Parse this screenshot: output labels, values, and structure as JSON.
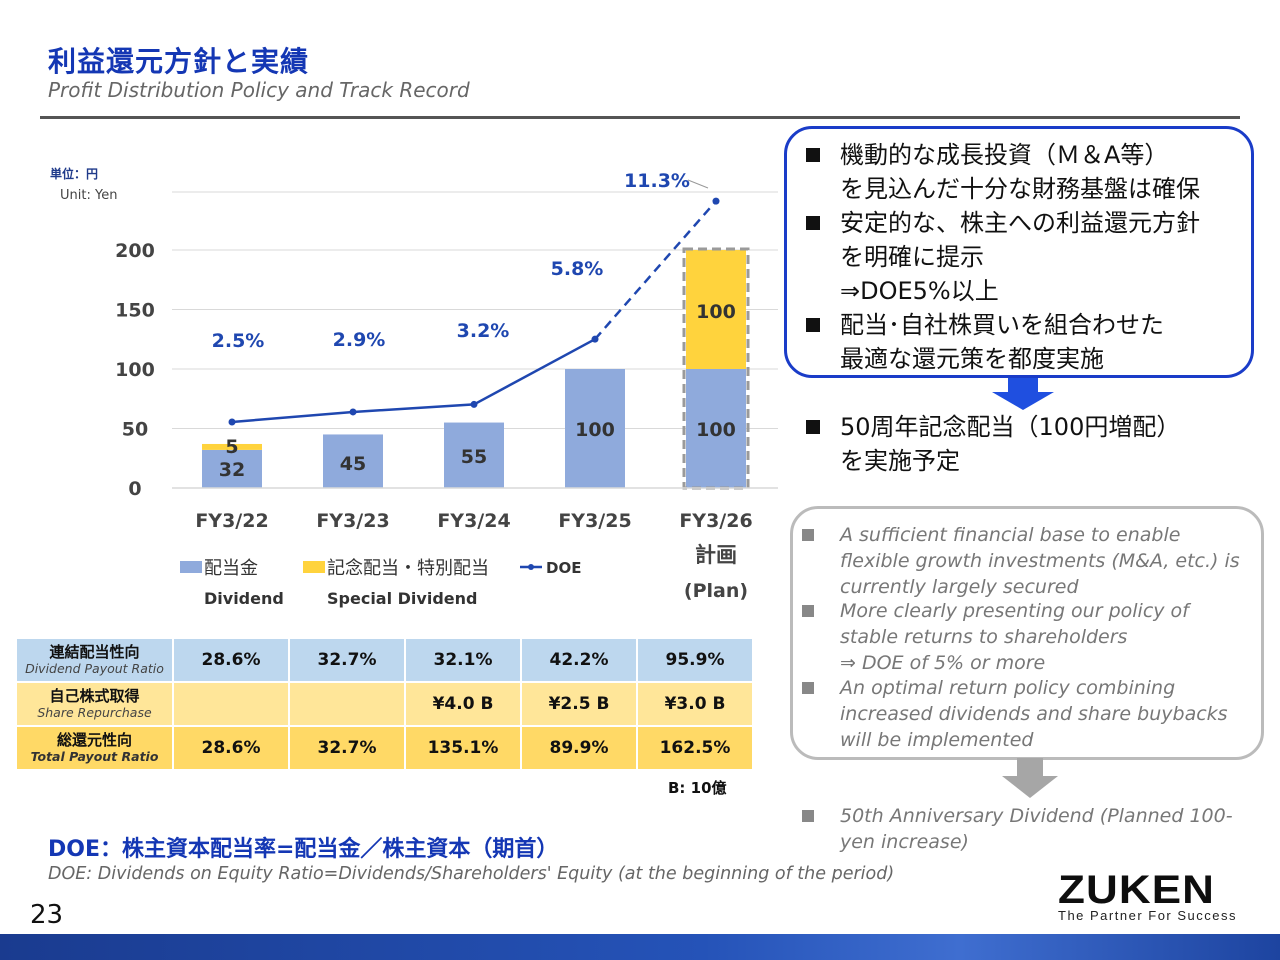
{
  "header": {
    "title_jp": "利益還元方針と実績",
    "title_en": "Profit Distribution Policy and Track Record"
  },
  "unit": {
    "jp": "単位：円",
    "en": "Unit: Yen"
  },
  "colors": {
    "dividend": "#8faadc",
    "special": "#ffd33d",
    "doe_line": "#1f47b0",
    "title_blue": "#1437b4"
  },
  "chart_data": {
    "type": "bar",
    "categories": [
      "FY3/22",
      "FY3/23",
      "FY3/24",
      "FY3/25",
      "FY3/26"
    ],
    "category_sublabels": [
      "",
      "",
      "",
      "",
      "計画"
    ],
    "category_sublabels2": [
      "",
      "",
      "",
      "",
      "(Plan)"
    ],
    "ylim": [
      0,
      200
    ],
    "yticks": [
      0,
      50,
      100,
      150,
      200
    ],
    "stacked": true,
    "series": [
      {
        "name": "配当金",
        "name_en": "Dividend",
        "values": [
          32,
          45,
          55,
          100,
          100
        ],
        "color": "#8faadc"
      },
      {
        "name": "記念配当・特別配当",
        "name_en": "Special Dividend",
        "values": [
          5,
          0,
          0,
          0,
          100
        ],
        "color": "#ffd33d"
      }
    ],
    "line_series": {
      "name": "DOE",
      "values": [
        2.5,
        2.9,
        3.2,
        5.8,
        11.3
      ],
      "labels": [
        "2.5%",
        "2.9%",
        "3.2%",
        "5.8%",
        "11.3%"
      ],
      "dashed_from_index": 3
    },
    "grid": true,
    "legend_position": "bottom"
  },
  "table": {
    "rows": [
      {
        "label_jp": "連結配当性向",
        "label_en": "Dividend Payout Ratio",
        "values": [
          "28.6%",
          "32.7%",
          "32.1%",
          "42.2%",
          "95.9%"
        ]
      },
      {
        "label_jp": "自己株式取得",
        "label_en": "Share Repurchase",
        "values": [
          "",
          "",
          "¥4.0 B",
          "¥2.5 B",
          "¥3.0 B"
        ]
      },
      {
        "label_jp": "総還元性向",
        "label_en": "Total Payout Ratio",
        "values": [
          "28.6%",
          "32.7%",
          "135.1%",
          "89.9%",
          "162.5%"
        ]
      }
    ],
    "note": "B: 10億"
  },
  "doe_definition": {
    "jp": "DOE：株主資本配当率=配当金／株主資本（期首）",
    "en": "DOE: Dividends on Equity Ratio=Dividends/Shareholders' Equity (at the beginning of the period)"
  },
  "policy_jp": [
    {
      "lines": [
        "機動的な成長投資（Ｍ＆A等）",
        "を見込んだ十分な財務基盤は確保"
      ]
    },
    {
      "lines": [
        "安定的な、株主への利益還元方針",
        "を明確に提示",
        "⇒DOE5%以上"
      ]
    },
    {
      "lines": [
        "配当･自社株買いを組合わせた",
        "最適な還元策を都度実施"
      ]
    }
  ],
  "anniversary_jp": {
    "lines": [
      "50周年記念配当（100円増配）",
      "を実施予定"
    ]
  },
  "policy_en": [
    {
      "lines": [
        "A sufficient financial base to enable",
        "flexible growth investments (M&A, etc.) is",
        "currently largely secured"
      ]
    },
    {
      "lines": [
        "More clearly presenting our policy of",
        "stable returns to shareholders",
        "⇒ DOE of 5% or more"
      ]
    },
    {
      "lines": [
        "An optimal return policy combining",
        "increased dividends and share buybacks",
        "will be implemented"
      ]
    }
  ],
  "anniversary_en": {
    "lines": [
      "50th Anniversary Dividend (Planned 100-",
      "yen increase)"
    ]
  },
  "footer": {
    "page_number": "23",
    "logo": "ZUKEN",
    "tagline": "The Partner For Success"
  }
}
